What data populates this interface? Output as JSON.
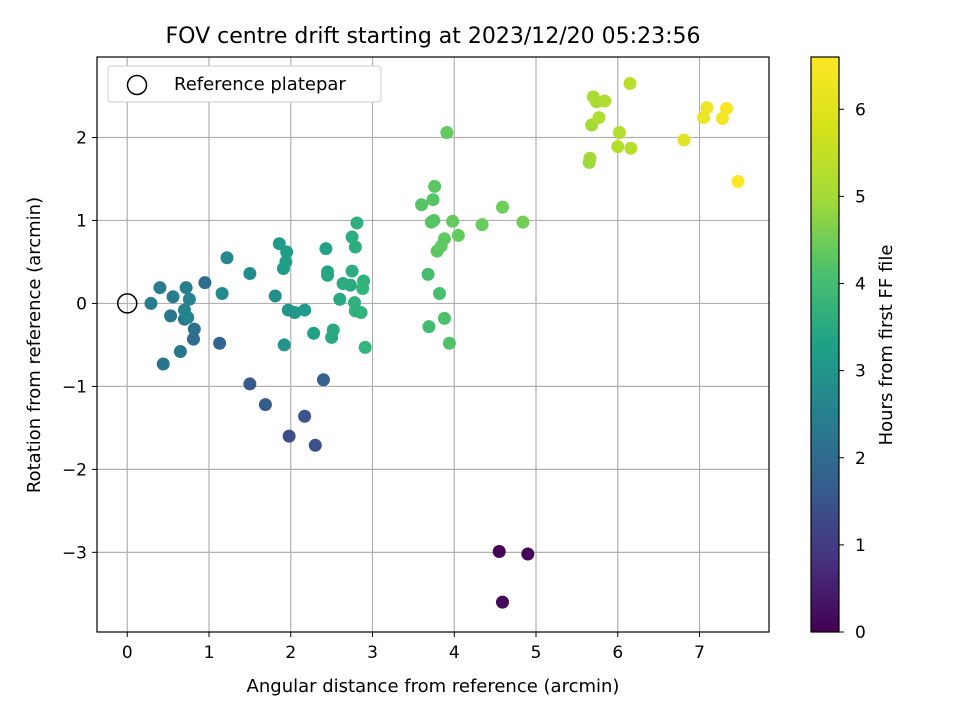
{
  "chart_data": {
    "type": "scatter",
    "title": "FOV centre drift starting at 2023/12/20 05:23:56",
    "xlabel": "Angular distance from reference (arcmin)",
    "ylabel": "Rotation from reference (arcmin)",
    "xlim": [
      -0.37,
      7.85
    ],
    "ylim": [
      -3.96,
      2.97
    ],
    "xticks": [
      0,
      1,
      2,
      3,
      4,
      5,
      6,
      7
    ],
    "yticks": [
      -3,
      -2,
      -1,
      0,
      1,
      2
    ],
    "grid": true,
    "legend": {
      "placement": "top-left",
      "label": "Reference platepar"
    },
    "reference_point": {
      "x": 0,
      "y": 0
    },
    "colorbar": {
      "label": "Hours from first FF file",
      "colormap": "viridis",
      "range": [
        0,
        6.6
      ],
      "ticks": [
        0,
        1,
        2,
        3,
        4,
        5,
        6
      ]
    },
    "points": [
      {
        "x": 4.55,
        "y": -2.99,
        "c": 0.05
      },
      {
        "x": 4.9,
        "y": -3.02,
        "c": 0.1
      },
      {
        "x": 4.59,
        "y": -3.6,
        "c": 0.15
      },
      {
        "x": 1.98,
        "y": -1.6,
        "c": 1.55
      },
      {
        "x": 2.3,
        "y": -1.71,
        "c": 1.65
      },
      {
        "x": 2.17,
        "y": -1.36,
        "c": 1.75
      },
      {
        "x": 1.5,
        "y": -0.97,
        "c": 1.85
      },
      {
        "x": 1.69,
        "y": -1.22,
        "c": 1.95
      },
      {
        "x": 2.4,
        "y": -0.92,
        "c": 2.05
      },
      {
        "x": 1.13,
        "y": -0.48,
        "c": 2.15
      },
      {
        "x": 0.81,
        "y": -0.43,
        "c": 2.25
      },
      {
        "x": 0.95,
        "y": 0.25,
        "c": 2.35
      },
      {
        "x": 0.82,
        "y": -0.31,
        "c": 2.45
      },
      {
        "x": 0.7,
        "y": -0.19,
        "c": 2.5
      },
      {
        "x": 0.44,
        "y": -0.73,
        "c": 2.55
      },
      {
        "x": 0.65,
        "y": -0.58,
        "c": 2.6
      },
      {
        "x": 0.53,
        "y": -0.15,
        "c": 2.65
      },
      {
        "x": 0.29,
        "y": 0.0,
        "c": 2.7
      },
      {
        "x": 0.56,
        "y": 0.08,
        "c": 2.75
      },
      {
        "x": 0.4,
        "y": 0.19,
        "c": 2.8
      },
      {
        "x": 0.72,
        "y": 0.19,
        "c": 2.85
      },
      {
        "x": 0.76,
        "y": 0.05,
        "c": 2.9
      },
      {
        "x": 0.7,
        "y": -0.08,
        "c": 2.95
      },
      {
        "x": 0.74,
        "y": -0.17,
        "c": 3.0
      },
      {
        "x": 1.22,
        "y": 0.55,
        "c": 3.1
      },
      {
        "x": 1.16,
        "y": 0.12,
        "c": 3.15
      },
      {
        "x": 1.5,
        "y": 0.36,
        "c": 3.2
      },
      {
        "x": 1.81,
        "y": 0.09,
        "c": 3.25
      },
      {
        "x": 1.92,
        "y": -0.5,
        "c": 3.4
      },
      {
        "x": 1.97,
        "y": -0.08,
        "c": 3.45
      },
      {
        "x": 2.05,
        "y": -0.11,
        "c": 3.5
      },
      {
        "x": 2.17,
        "y": -0.08,
        "c": 3.55
      },
      {
        "x": 1.86,
        "y": 0.72,
        "c": 3.55
      },
      {
        "x": 1.91,
        "y": 0.42,
        "c": 3.6
      },
      {
        "x": 1.95,
        "y": 0.62,
        "c": 3.65
      },
      {
        "x": 1.94,
        "y": 0.5,
        "c": 3.7
      },
      {
        "x": 2.28,
        "y": -0.36,
        "c": 3.75
      },
      {
        "x": 2.43,
        "y": 0.66,
        "c": 3.8
      },
      {
        "x": 2.45,
        "y": 0.38,
        "c": 3.85
      },
      {
        "x": 2.45,
        "y": 0.34,
        "c": 3.9
      },
      {
        "x": 2.5,
        "y": -0.41,
        "c": 3.95
      },
      {
        "x": 2.52,
        "y": -0.32,
        "c": 4.0
      },
      {
        "x": 2.6,
        "y": 0.05,
        "c": 4.0
      },
      {
        "x": 2.64,
        "y": 0.24,
        "c": 4.05
      },
      {
        "x": 2.73,
        "y": 0.22,
        "c": 4.05
      },
      {
        "x": 2.75,
        "y": 0.39,
        "c": 4.1
      },
      {
        "x": 2.75,
        "y": 0.8,
        "c": 4.1
      },
      {
        "x": 2.79,
        "y": 0.68,
        "c": 4.15
      },
      {
        "x": 2.81,
        "y": 0.97,
        "c": 4.15
      },
      {
        "x": 2.78,
        "y": 0.01,
        "c": 4.2
      },
      {
        "x": 2.79,
        "y": -0.09,
        "c": 4.2
      },
      {
        "x": 2.86,
        "y": -0.11,
        "c": 4.25
      },
      {
        "x": 2.89,
        "y": 0.27,
        "c": 4.25
      },
      {
        "x": 2.88,
        "y": 0.18,
        "c": 4.3
      },
      {
        "x": 2.91,
        "y": -0.53,
        "c": 4.3
      },
      {
        "x": 3.69,
        "y": -0.28,
        "c": 4.55
      },
      {
        "x": 3.68,
        "y": 0.35,
        "c": 4.6
      },
      {
        "x": 3.82,
        "y": 0.12,
        "c": 4.65
      },
      {
        "x": 3.88,
        "y": -0.18,
        "c": 4.7
      },
      {
        "x": 3.94,
        "y": -0.48,
        "c": 4.75
      },
      {
        "x": 3.6,
        "y": 1.19,
        "c": 4.8
      },
      {
        "x": 3.74,
        "y": 1.25,
        "c": 4.8
      },
      {
        "x": 3.72,
        "y": 0.98,
        "c": 4.85
      },
      {
        "x": 3.75,
        "y": 1.0,
        "c": 4.85
      },
      {
        "x": 3.76,
        "y": 1.41,
        "c": 4.9
      },
      {
        "x": 3.79,
        "y": 0.63,
        "c": 4.9
      },
      {
        "x": 3.84,
        "y": 0.69,
        "c": 4.95
      },
      {
        "x": 3.88,
        "y": 0.78,
        "c": 4.95
      },
      {
        "x": 3.91,
        "y": 2.06,
        "c": 5.0
      },
      {
        "x": 3.98,
        "y": 0.99,
        "c": 5.0
      },
      {
        "x": 4.05,
        "y": 0.82,
        "c": 5.0
      },
      {
        "x": 4.34,
        "y": 0.95,
        "c": 5.05
      },
      {
        "x": 4.59,
        "y": 1.16,
        "c": 5.1
      },
      {
        "x": 4.84,
        "y": 0.98,
        "c": 5.15
      },
      {
        "x": 5.65,
        "y": 1.7,
        "c": 5.6
      },
      {
        "x": 5.66,
        "y": 1.75,
        "c": 5.65
      },
      {
        "x": 5.68,
        "y": 2.15,
        "c": 5.7
      },
      {
        "x": 5.7,
        "y": 2.49,
        "c": 5.75
      },
      {
        "x": 5.74,
        "y": 2.43,
        "c": 5.75
      },
      {
        "x": 5.77,
        "y": 2.24,
        "c": 5.8
      },
      {
        "x": 5.84,
        "y": 2.44,
        "c": 5.8
      },
      {
        "x": 6.0,
        "y": 1.89,
        "c": 5.85
      },
      {
        "x": 6.02,
        "y": 2.06,
        "c": 5.85
      },
      {
        "x": 6.15,
        "y": 2.65,
        "c": 5.9
      },
      {
        "x": 6.16,
        "y": 1.87,
        "c": 5.9
      },
      {
        "x": 6.81,
        "y": 1.97,
        "c": 6.3
      },
      {
        "x": 7.05,
        "y": 2.24,
        "c": 6.4
      },
      {
        "x": 7.09,
        "y": 2.36,
        "c": 6.45
      },
      {
        "x": 7.28,
        "y": 2.23,
        "c": 6.5
      },
      {
        "x": 7.33,
        "y": 2.35,
        "c": 6.55
      },
      {
        "x": 7.47,
        "y": 1.47,
        "c": 6.6
      }
    ]
  }
}
